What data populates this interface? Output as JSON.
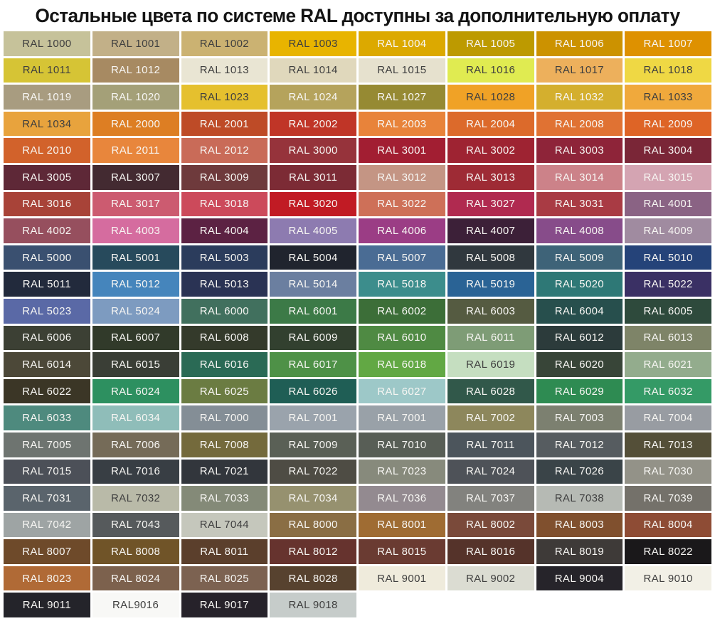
{
  "title": "Остальные цвета по системе RAL доступны за дополнительную оплату",
  "chart_data": {
    "type": "table",
    "title": "Остальные цвета по системе RAL доступны за дополнительную оплату",
    "grid": {
      "columns": 8,
      "rows": 22,
      "filled_cells": 172
    },
    "note_visible_quirks": "cell at row 15 col 5 repeats label RAL 7001; cell RAL9016 shown without space",
    "cells": [
      {
        "label": "RAL 1000",
        "hex": "#C6C29A",
        "fg": "dark"
      },
      {
        "label": "RAL 1001",
        "hex": "#C2B088",
        "fg": "dark"
      },
      {
        "label": "RAL 1002",
        "hex": "#CBB272",
        "fg": "dark"
      },
      {
        "label": "RAL 1003",
        "hex": "#E8B400",
        "fg": "dark"
      },
      {
        "label": "RAL 1004",
        "hex": "#DCA900",
        "fg": "light"
      },
      {
        "label": "RAL 1005",
        "hex": "#BD9A00",
        "fg": "light"
      },
      {
        "label": "RAL 1006",
        "hex": "#CC9200",
        "fg": "light"
      },
      {
        "label": "RAL 1007",
        "hex": "#DE9100",
        "fg": "light"
      },
      {
        "label": "RAL 1011",
        "hex": "#D6C435",
        "fg": "dark"
      },
      {
        "label": "RAL 1012",
        "hex": "#A78A62",
        "fg": "light"
      },
      {
        "label": "RAL 1013",
        "hex": "#E9E5D3",
        "fg": "dark"
      },
      {
        "label": "RAL 1014",
        "hex": "#E0D8BC",
        "fg": "dark"
      },
      {
        "label": "RAL 1015",
        "hex": "#E6E1CE",
        "fg": "dark"
      },
      {
        "label": "RAL 1016",
        "hex": "#E0EB51",
        "fg": "dark"
      },
      {
        "label": "RAL 1017",
        "hex": "#EDB05C",
        "fg": "dark"
      },
      {
        "label": "RAL 1018",
        "hex": "#EFD844",
        "fg": "dark"
      },
      {
        "label": "RAL 1019",
        "hex": "#A89C80",
        "fg": "light"
      },
      {
        "label": "RAL 1020",
        "hex": "#A4A078",
        "fg": "light"
      },
      {
        "label": "RAL 1023",
        "hex": "#E5C02E",
        "fg": "dark"
      },
      {
        "label": "RAL 1024",
        "hex": "#B5A35C",
        "fg": "light"
      },
      {
        "label": "RAL 1027",
        "hex": "#968A33",
        "fg": "light"
      },
      {
        "label": "RAL 1028",
        "hex": "#F0A226",
        "fg": "dark"
      },
      {
        "label": "RAL 1032",
        "hex": "#D4AF2E",
        "fg": "light"
      },
      {
        "label": "RAL 1033",
        "hex": "#F0A93C",
        "fg": "dark"
      },
      {
        "label": "RAL 1034",
        "hex": "#E8A33D",
        "fg": "dark"
      },
      {
        "label": "RAL 2000",
        "hex": "#DD7E23",
        "fg": "light"
      },
      {
        "label": "RAL 2001",
        "hex": "#BE4B27",
        "fg": "light"
      },
      {
        "label": "RAL 2002",
        "hex": "#C03527",
        "fg": "light"
      },
      {
        "label": "RAL 2003",
        "hex": "#E8833A",
        "fg": "light"
      },
      {
        "label": "RAL 2004",
        "hex": "#DC6A2B",
        "fg": "light"
      },
      {
        "label": "RAL 2008",
        "hex": "#E07233",
        "fg": "light"
      },
      {
        "label": "RAL 2009",
        "hex": "#DE6426",
        "fg": "light"
      },
      {
        "label": "RAL 2010",
        "hex": "#D2622B",
        "fg": "light"
      },
      {
        "label": "RAL 2011",
        "hex": "#E8863C",
        "fg": "light"
      },
      {
        "label": "RAL 2012",
        "hex": "#C96B58",
        "fg": "light"
      },
      {
        "label": "RAL 3000",
        "hex": "#96333B",
        "fg": "light"
      },
      {
        "label": "RAL 3001",
        "hex": "#A21E32",
        "fg": "light"
      },
      {
        "label": "RAL 3002",
        "hex": "#9E2332",
        "fg": "light"
      },
      {
        "label": "RAL 3003",
        "hex": "#8E2439",
        "fg": "light"
      },
      {
        "label": "RAL 3004",
        "hex": "#7A2637",
        "fg": "light"
      },
      {
        "label": "RAL 3005",
        "hex": "#5E2837",
        "fg": "light"
      },
      {
        "label": "RAL 3007",
        "hex": "#432A31",
        "fg": "light"
      },
      {
        "label": "RAL 3009",
        "hex": "#6E3A3C",
        "fg": "light"
      },
      {
        "label": "RAL 3011",
        "hex": "#7C2B35",
        "fg": "light"
      },
      {
        "label": "RAL 3012",
        "hex": "#C49584",
        "fg": "light"
      },
      {
        "label": "RAL 3013",
        "hex": "#9E2B35",
        "fg": "light"
      },
      {
        "label": "RAL 3014",
        "hex": "#CC8289",
        "fg": "light"
      },
      {
        "label": "RAL 3015",
        "hex": "#D4A4B2",
        "fg": "light"
      },
      {
        "label": "RAL 3016",
        "hex": "#A84338",
        "fg": "light"
      },
      {
        "label": "RAL 3017",
        "hex": "#CC5B70",
        "fg": "light"
      },
      {
        "label": "RAL 3018",
        "hex": "#CC4A5B",
        "fg": "light"
      },
      {
        "label": "RAL 3020",
        "hex": "#C11B24",
        "fg": "light"
      },
      {
        "label": "RAL 3022",
        "hex": "#CE7058",
        "fg": "light"
      },
      {
        "label": "RAL 3027",
        "hex": "#B02A50",
        "fg": "light"
      },
      {
        "label": "RAL 3031",
        "hex": "#A93B44",
        "fg": "light"
      },
      {
        "label": "RAL 4001",
        "hex": "#8A6384",
        "fg": "light"
      },
      {
        "label": "RAL 4002",
        "hex": "#964F5E",
        "fg": "light"
      },
      {
        "label": "RAL 4003",
        "hex": "#D56C9F",
        "fg": "light"
      },
      {
        "label": "RAL 4004",
        "hex": "#5C2243",
        "fg": "light"
      },
      {
        "label": "RAL 4005",
        "hex": "#8D7BB0",
        "fg": "light"
      },
      {
        "label": "RAL 4006",
        "hex": "#9B3D85",
        "fg": "light"
      },
      {
        "label": "RAL 4007",
        "hex": "#3C2038",
        "fg": "light"
      },
      {
        "label": "RAL 4008",
        "hex": "#874C8A",
        "fg": "light"
      },
      {
        "label": "RAL 4009",
        "hex": "#A08BA0",
        "fg": "light"
      },
      {
        "label": "RAL 5000",
        "hex": "#3A5070",
        "fg": "light"
      },
      {
        "label": "RAL 5001",
        "hex": "#274A5C",
        "fg": "light"
      },
      {
        "label": "RAL 5003",
        "hex": "#2B3C5C",
        "fg": "light"
      },
      {
        "label": "RAL 5004",
        "hex": "#20242E",
        "fg": "light"
      },
      {
        "label": "RAL 5007",
        "hex": "#4A6C94",
        "fg": "light"
      },
      {
        "label": "RAL 5008",
        "hex": "#30383E",
        "fg": "light"
      },
      {
        "label": "RAL 5009",
        "hex": "#3E6378",
        "fg": "light"
      },
      {
        "label": "RAL 5010",
        "hex": "#254379",
        "fg": "light"
      },
      {
        "label": "RAL 5011",
        "hex": "#222A3C",
        "fg": "light"
      },
      {
        "label": "RAL 5012",
        "hex": "#4585BC",
        "fg": "light"
      },
      {
        "label": "RAL 5013",
        "hex": "#2A3354",
        "fg": "light"
      },
      {
        "label": "RAL 5014",
        "hex": "#6B7FA0",
        "fg": "light"
      },
      {
        "label": "RAL 5018",
        "hex": "#3C8D8C",
        "fg": "light"
      },
      {
        "label": "RAL 5019",
        "hex": "#2A6395",
        "fg": "light"
      },
      {
        "label": "RAL 5020",
        "hex": "#2E7876",
        "fg": "light"
      },
      {
        "label": "RAL 5022",
        "hex": "#3A3064",
        "fg": "light"
      },
      {
        "label": "RAL 5023",
        "hex": "#5A69A6",
        "fg": "light"
      },
      {
        "label": "RAL 5024",
        "hex": "#7D9BC0",
        "fg": "light"
      },
      {
        "label": "RAL 6000",
        "hex": "#41705E",
        "fg": "light"
      },
      {
        "label": "RAL 6001",
        "hex": "#3C7A47",
        "fg": "light"
      },
      {
        "label": "RAL 6002",
        "hex": "#3C6E38",
        "fg": "light"
      },
      {
        "label": "RAL 6003",
        "hex": "#555B41",
        "fg": "light"
      },
      {
        "label": "RAL 6004",
        "hex": "#274F4D",
        "fg": "light"
      },
      {
        "label": "RAL 6005",
        "hex": "#2E4A3C",
        "fg": "light"
      },
      {
        "label": "RAL 6006",
        "hex": "#3C4034",
        "fg": "light"
      },
      {
        "label": "RAL 6007",
        "hex": "#313A2A",
        "fg": "light"
      },
      {
        "label": "RAL 6008",
        "hex": "#343A2B",
        "fg": "light"
      },
      {
        "label": "RAL 6009",
        "hex": "#32402F",
        "fg": "light"
      },
      {
        "label": "RAL 6010",
        "hex": "#4F8A43",
        "fg": "light"
      },
      {
        "label": "RAL 6011",
        "hex": "#7E9C76",
        "fg": "light"
      },
      {
        "label": "RAL 6012",
        "hex": "#2C3B3B",
        "fg": "light"
      },
      {
        "label": "RAL 6013",
        "hex": "#7E8468",
        "fg": "light"
      },
      {
        "label": "RAL 6014",
        "hex": "#4C4838",
        "fg": "light"
      },
      {
        "label": "RAL 6015",
        "hex": "#3A3E36",
        "fg": "light"
      },
      {
        "label": "RAL 6016",
        "hex": "#2A6A55",
        "fg": "light"
      },
      {
        "label": "RAL 6017",
        "hex": "#4E9147",
        "fg": "light"
      },
      {
        "label": "RAL 6018",
        "hex": "#62A844",
        "fg": "light"
      },
      {
        "label": "RAL 6019",
        "hex": "#C5DEC0",
        "fg": "dark"
      },
      {
        "label": "RAL 6020",
        "hex": "#384538",
        "fg": "light"
      },
      {
        "label": "RAL 6021",
        "hex": "#93AC8D",
        "fg": "light"
      },
      {
        "label": "RAL 6022",
        "hex": "#3B3626",
        "fg": "light"
      },
      {
        "label": "RAL 6024",
        "hex": "#2D9060",
        "fg": "light"
      },
      {
        "label": "RAL 6025",
        "hex": "#6B7C42",
        "fg": "light"
      },
      {
        "label": "RAL 6026",
        "hex": "#1F5E55",
        "fg": "light"
      },
      {
        "label": "RAL 6027",
        "hex": "#9DC8C8",
        "fg": "light"
      },
      {
        "label": "RAL 6028",
        "hex": "#31584A",
        "fg": "light"
      },
      {
        "label": "RAL 6029",
        "hex": "#2E8B52",
        "fg": "light"
      },
      {
        "label": "RAL 6032",
        "hex": "#349A66",
        "fg": "light"
      },
      {
        "label": "RAL 6033",
        "hex": "#4E8A7E",
        "fg": "light"
      },
      {
        "label": "RAL 6034",
        "hex": "#8FBDB9",
        "fg": "light"
      },
      {
        "label": "RAL 7000",
        "hex": "#848E96",
        "fg": "light"
      },
      {
        "label": "RAL 7001",
        "hex": "#9AA3AC",
        "fg": "light"
      },
      {
        "label": "RAL 7001",
        "hex": "#99A1A8",
        "fg": "light"
      },
      {
        "label": "RAL 7002",
        "hex": "#8D875C",
        "fg": "light"
      },
      {
        "label": "RAL 7003",
        "hex": "#7C8070",
        "fg": "light"
      },
      {
        "label": "RAL 7004",
        "hex": "#989CA2",
        "fg": "light"
      },
      {
        "label": "RAL 7005",
        "hex": "#6E7470",
        "fg": "light"
      },
      {
        "label": "RAL 7006",
        "hex": "#756B58",
        "fg": "light"
      },
      {
        "label": "RAL 7008",
        "hex": "#746A3C",
        "fg": "light"
      },
      {
        "label": "RAL 7009",
        "hex": "#5A6056",
        "fg": "light"
      },
      {
        "label": "RAL 7010",
        "hex": "#585E56",
        "fg": "light"
      },
      {
        "label": "RAL 7011",
        "hex": "#4C555C",
        "fg": "light"
      },
      {
        "label": "RAL 7012",
        "hex": "#565C60",
        "fg": "light"
      },
      {
        "label": "RAL 7013",
        "hex": "#544F38",
        "fg": "light"
      },
      {
        "label": "RAL 7015",
        "hex": "#4C5058",
        "fg": "light"
      },
      {
        "label": "RAL 7016",
        "hex": "#383E44",
        "fg": "light"
      },
      {
        "label": "RAL 7021",
        "hex": "#32363C",
        "fg": "light"
      },
      {
        "label": "RAL 7022",
        "hex": "#4E4C44",
        "fg": "light"
      },
      {
        "label": "RAL 7023",
        "hex": "#878A7C",
        "fg": "light"
      },
      {
        "label": "RAL 7024",
        "hex": "#4E5258",
        "fg": "light"
      },
      {
        "label": "RAL 7026",
        "hex": "#3A4448",
        "fg": "light"
      },
      {
        "label": "RAL 7030",
        "hex": "#939288",
        "fg": "light"
      },
      {
        "label": "RAL 7031",
        "hex": "#5A646C",
        "fg": "light"
      },
      {
        "label": "RAL 7032",
        "hex": "#B9BAA8",
        "fg": "dark"
      },
      {
        "label": "RAL 7033",
        "hex": "#848A78",
        "fg": "light"
      },
      {
        "label": "RAL 7034",
        "hex": "#96916F",
        "fg": "light"
      },
      {
        "label": "RAL 7036",
        "hex": "#938A90",
        "fg": "light"
      },
      {
        "label": "RAL 7037",
        "hex": "#82827E",
        "fg": "light"
      },
      {
        "label": "RAL 7038",
        "hex": "#B6BAB4",
        "fg": "dark"
      },
      {
        "label": "RAL 7039",
        "hex": "#74716A",
        "fg": "light"
      },
      {
        "label": "RAL 7042",
        "hex": "#9EA4A4",
        "fg": "light"
      },
      {
        "label": "RAL 7043",
        "hex": "#565A5C",
        "fg": "light"
      },
      {
        "label": "RAL 7044",
        "hex": "#C5C7BC",
        "fg": "dark"
      },
      {
        "label": "RAL 8000",
        "hex": "#8A6E44",
        "fg": "light"
      },
      {
        "label": "RAL 8001",
        "hex": "#9F6C33",
        "fg": "light"
      },
      {
        "label": "RAL 8002",
        "hex": "#7A4A3A",
        "fg": "light"
      },
      {
        "label": "RAL 8003",
        "hex": "#80502E",
        "fg": "light"
      },
      {
        "label": "RAL 8004",
        "hex": "#8E4C35",
        "fg": "light"
      },
      {
        "label": "RAL 8007",
        "hex": "#6E4A2A",
        "fg": "light"
      },
      {
        "label": "RAL 8008",
        "hex": "#705428",
        "fg": "light"
      },
      {
        "label": "RAL 8011",
        "hex": "#5B3F2C",
        "fg": "light"
      },
      {
        "label": "RAL 8012",
        "hex": "#66332E",
        "fg": "light"
      },
      {
        "label": "RAL 8015",
        "hex": "#6A3B32",
        "fg": "light"
      },
      {
        "label": "RAL 8016",
        "hex": "#55332A",
        "fg": "light"
      },
      {
        "label": "RAL 8019",
        "hex": "#3E3A38",
        "fg": "light"
      },
      {
        "label": "RAL 8022",
        "hex": "#1A181A",
        "fg": "light"
      },
      {
        "label": "RAL 8023",
        "hex": "#B06A36",
        "fg": "light"
      },
      {
        "label": "RAL 8024",
        "hex": "#7C614D",
        "fg": "light"
      },
      {
        "label": "RAL 8025",
        "hex": "#7C6251",
        "fg": "light"
      },
      {
        "label": "RAL 8028",
        "hex": "#57422F",
        "fg": "light"
      },
      {
        "label": "RAL 9001",
        "hex": "#EFEBDC",
        "fg": "dark"
      },
      {
        "label": "RAL 9002",
        "hex": "#DBDCD2",
        "fg": "dark"
      },
      {
        "label": "RAL 9004",
        "hex": "#26242A",
        "fg": "light"
      },
      {
        "label": "RAL 9010",
        "hex": "#F2F0E6",
        "fg": "dark"
      },
      {
        "label": "RAL 9011",
        "hex": "#24242A",
        "fg": "light"
      },
      {
        "label": "RAL9016",
        "hex": "#F8F8F6",
        "fg": "dark"
      },
      {
        "label": "RAL 9017",
        "hex": "#26222A",
        "fg": "light"
      },
      {
        "label": "RAL 9018",
        "hex": "#C6CCCA",
        "fg": "dark"
      }
    ]
  }
}
